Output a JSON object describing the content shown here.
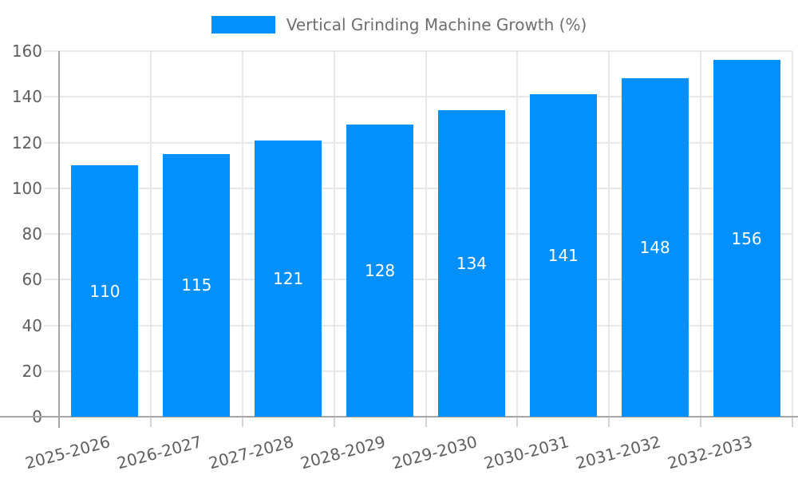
{
  "chart_data": {
    "type": "bar",
    "title": "Vertical Grinding Machine Growth (%)",
    "legend_entries": [
      "Vertical Grinding Machine Growth (%)"
    ],
    "legend_position": "top-center",
    "categories": [
      "2025-2026",
      "2026-2027",
      "2027-2028",
      "2028-2029",
      "2029-2030",
      "2030-2031",
      "2031-2032",
      "2032-2033"
    ],
    "values": [
      110,
      115,
      121,
      128,
      134,
      141,
      148,
      156
    ],
    "xlabel": "",
    "ylabel": "",
    "ylim": [
      0,
      160
    ],
    "yticks": [
      0,
      20,
      40,
      60,
      80,
      100,
      120,
      140,
      160
    ],
    "grid": true,
    "value_labels_position": "inside-middle"
  },
  "colors": {
    "bar": "#0490fa",
    "grid": "#e8e8e8",
    "boundary_tick": "#d4d4d4",
    "axis": "#a6a6a6",
    "tick_text": "#5f5f5f",
    "legend_text": "#6e6e6e",
    "value_label": "#ffffff"
  }
}
